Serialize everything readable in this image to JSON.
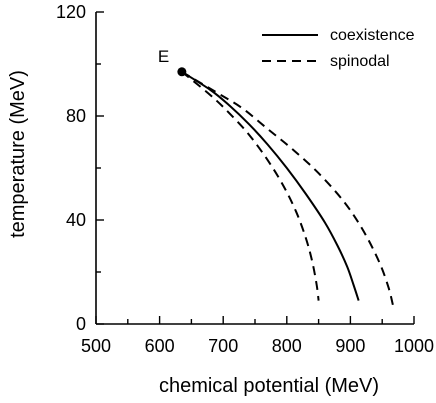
{
  "chart_data": {
    "type": "line",
    "xlabel": "chemical potential (MeV)",
    "ylabel": "temperature (MeV)",
    "xlim": [
      500,
      1000
    ],
    "ylim": [
      0,
      120
    ],
    "x_ticks": [
      500,
      600,
      700,
      800,
      900,
      1000
    ],
    "y_ticks": [
      0,
      40,
      80,
      120
    ],
    "legend": "top-right",
    "series": [
      {
        "name": "coexistence",
        "style": "solid",
        "points": [
          [
            635,
            97
          ],
          [
            680,
            90
          ],
          [
            710,
            84
          ],
          [
            740,
            77
          ],
          [
            770,
            69
          ],
          [
            800,
            60
          ],
          [
            830,
            50
          ],
          [
            860,
            39
          ],
          [
            880,
            30
          ],
          [
            895,
            22
          ],
          [
            905,
            15
          ],
          [
            913,
            9
          ]
        ]
      },
      {
        "name": "spinodal",
        "style": "dashed",
        "points": [
          [
            635,
            97
          ],
          [
            680,
            88
          ],
          [
            710,
            81
          ],
          [
            740,
            73
          ],
          [
            770,
            63
          ],
          [
            795,
            53
          ],
          [
            815,
            43
          ],
          [
            830,
            33
          ],
          [
            840,
            24
          ],
          [
            847,
            15
          ],
          [
            850,
            9
          ]
        ]
      },
      {
        "name": "spinodal",
        "style": "dashed",
        "points": [
          [
            635,
            97
          ],
          [
            690,
            89
          ],
          [
            730,
            83
          ],
          [
            770,
            75
          ],
          [
            810,
            67
          ],
          [
            850,
            58
          ],
          [
            890,
            47
          ],
          [
            920,
            36
          ],
          [
            945,
            24
          ],
          [
            960,
            14
          ],
          [
            968,
            6
          ]
        ]
      }
    ],
    "annotations": [
      {
        "text": "E",
        "x": 635,
        "y": 97
      }
    ]
  }
}
